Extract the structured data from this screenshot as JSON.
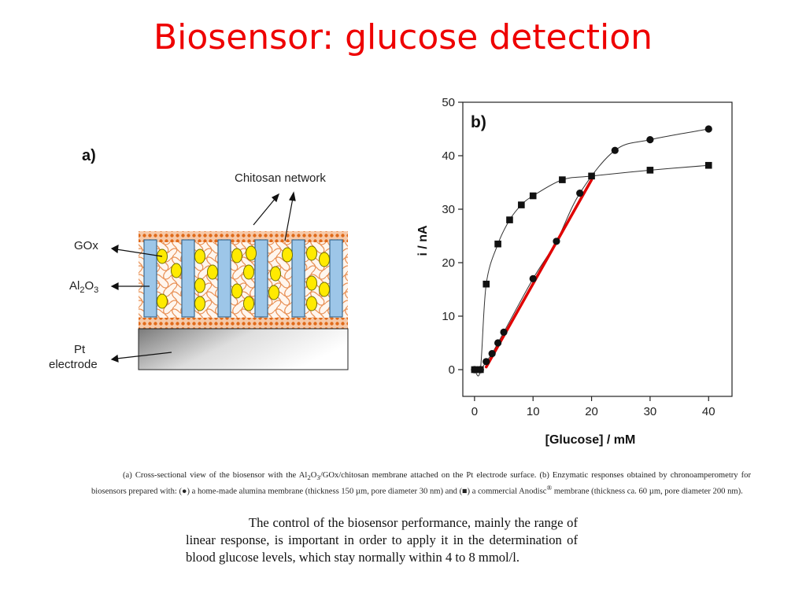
{
  "slide": {
    "title": "Biosensor: glucose detection"
  },
  "diagram": {
    "panel_label": "a)",
    "labels": {
      "chitosan": "Chitosan network",
      "gox": "GOx",
      "al_main": "Al",
      "al_sub1": "2",
      "al_o": "O",
      "al_sub2": "3",
      "pt_line1": "Pt",
      "pt_line2": "electrode"
    }
  },
  "chart_data": {
    "type": "scatter",
    "panel_label": "b)",
    "xlabel": "[Glucose] / mM",
    "ylabel": "i / nA",
    "xlim": [
      -2,
      44
    ],
    "ylim": [
      -5,
      50
    ],
    "xticks": [
      0,
      10,
      20,
      30,
      40
    ],
    "yticks": [
      0,
      10,
      20,
      30,
      40,
      50
    ],
    "series": [
      {
        "marker": "circle",
        "x": [
          0,
          1,
          2,
          3,
          4,
          5,
          10,
          14,
          18,
          24,
          30,
          40
        ],
        "y": [
          0,
          0,
          1.5,
          3,
          5,
          7,
          17,
          24,
          33,
          41,
          43,
          45
        ]
      },
      {
        "marker": "square",
        "x": [
          0,
          1,
          2,
          4,
          6,
          8,
          10,
          15,
          20,
          30,
          40
        ],
        "y": [
          0,
          0,
          16,
          23.5,
          28,
          30.8,
          32.5,
          35.5,
          36.2,
          37.3,
          38.2
        ]
      }
    ],
    "fit_line": {
      "color": "#e00000",
      "x": [
        2,
        20
      ],
      "y": [
        0.5,
        35.5
      ]
    }
  },
  "caption": {
    "p1": "(a) Cross-sectional view of the biosensor with the Al",
    "s1": "2",
    "p2": "O",
    "s2": "3",
    "p3": "/GOx/chitosan membrane attached on the Pt electrode surface. (b) Enzymatic responses obtained by chronoamperometry for biosensors prepared with: (",
    "circle_glyph": "●",
    "p4": ") a home-made alumina membrane (thickness 150 µm, pore diameter 30 nm) and (",
    "square_glyph": "■",
    "p5": ") a commercial Anodisc",
    "reg": "®",
    "p6": " membrane (thickness ca. 60 µm, pore diameter 200 nm)."
  },
  "body_text": "The control of the biosensor performance, mainly the range of linear response, is important in order to apply it in the determination of blood glucose levels, which stay normally within 4 to 8 mmol/l."
}
